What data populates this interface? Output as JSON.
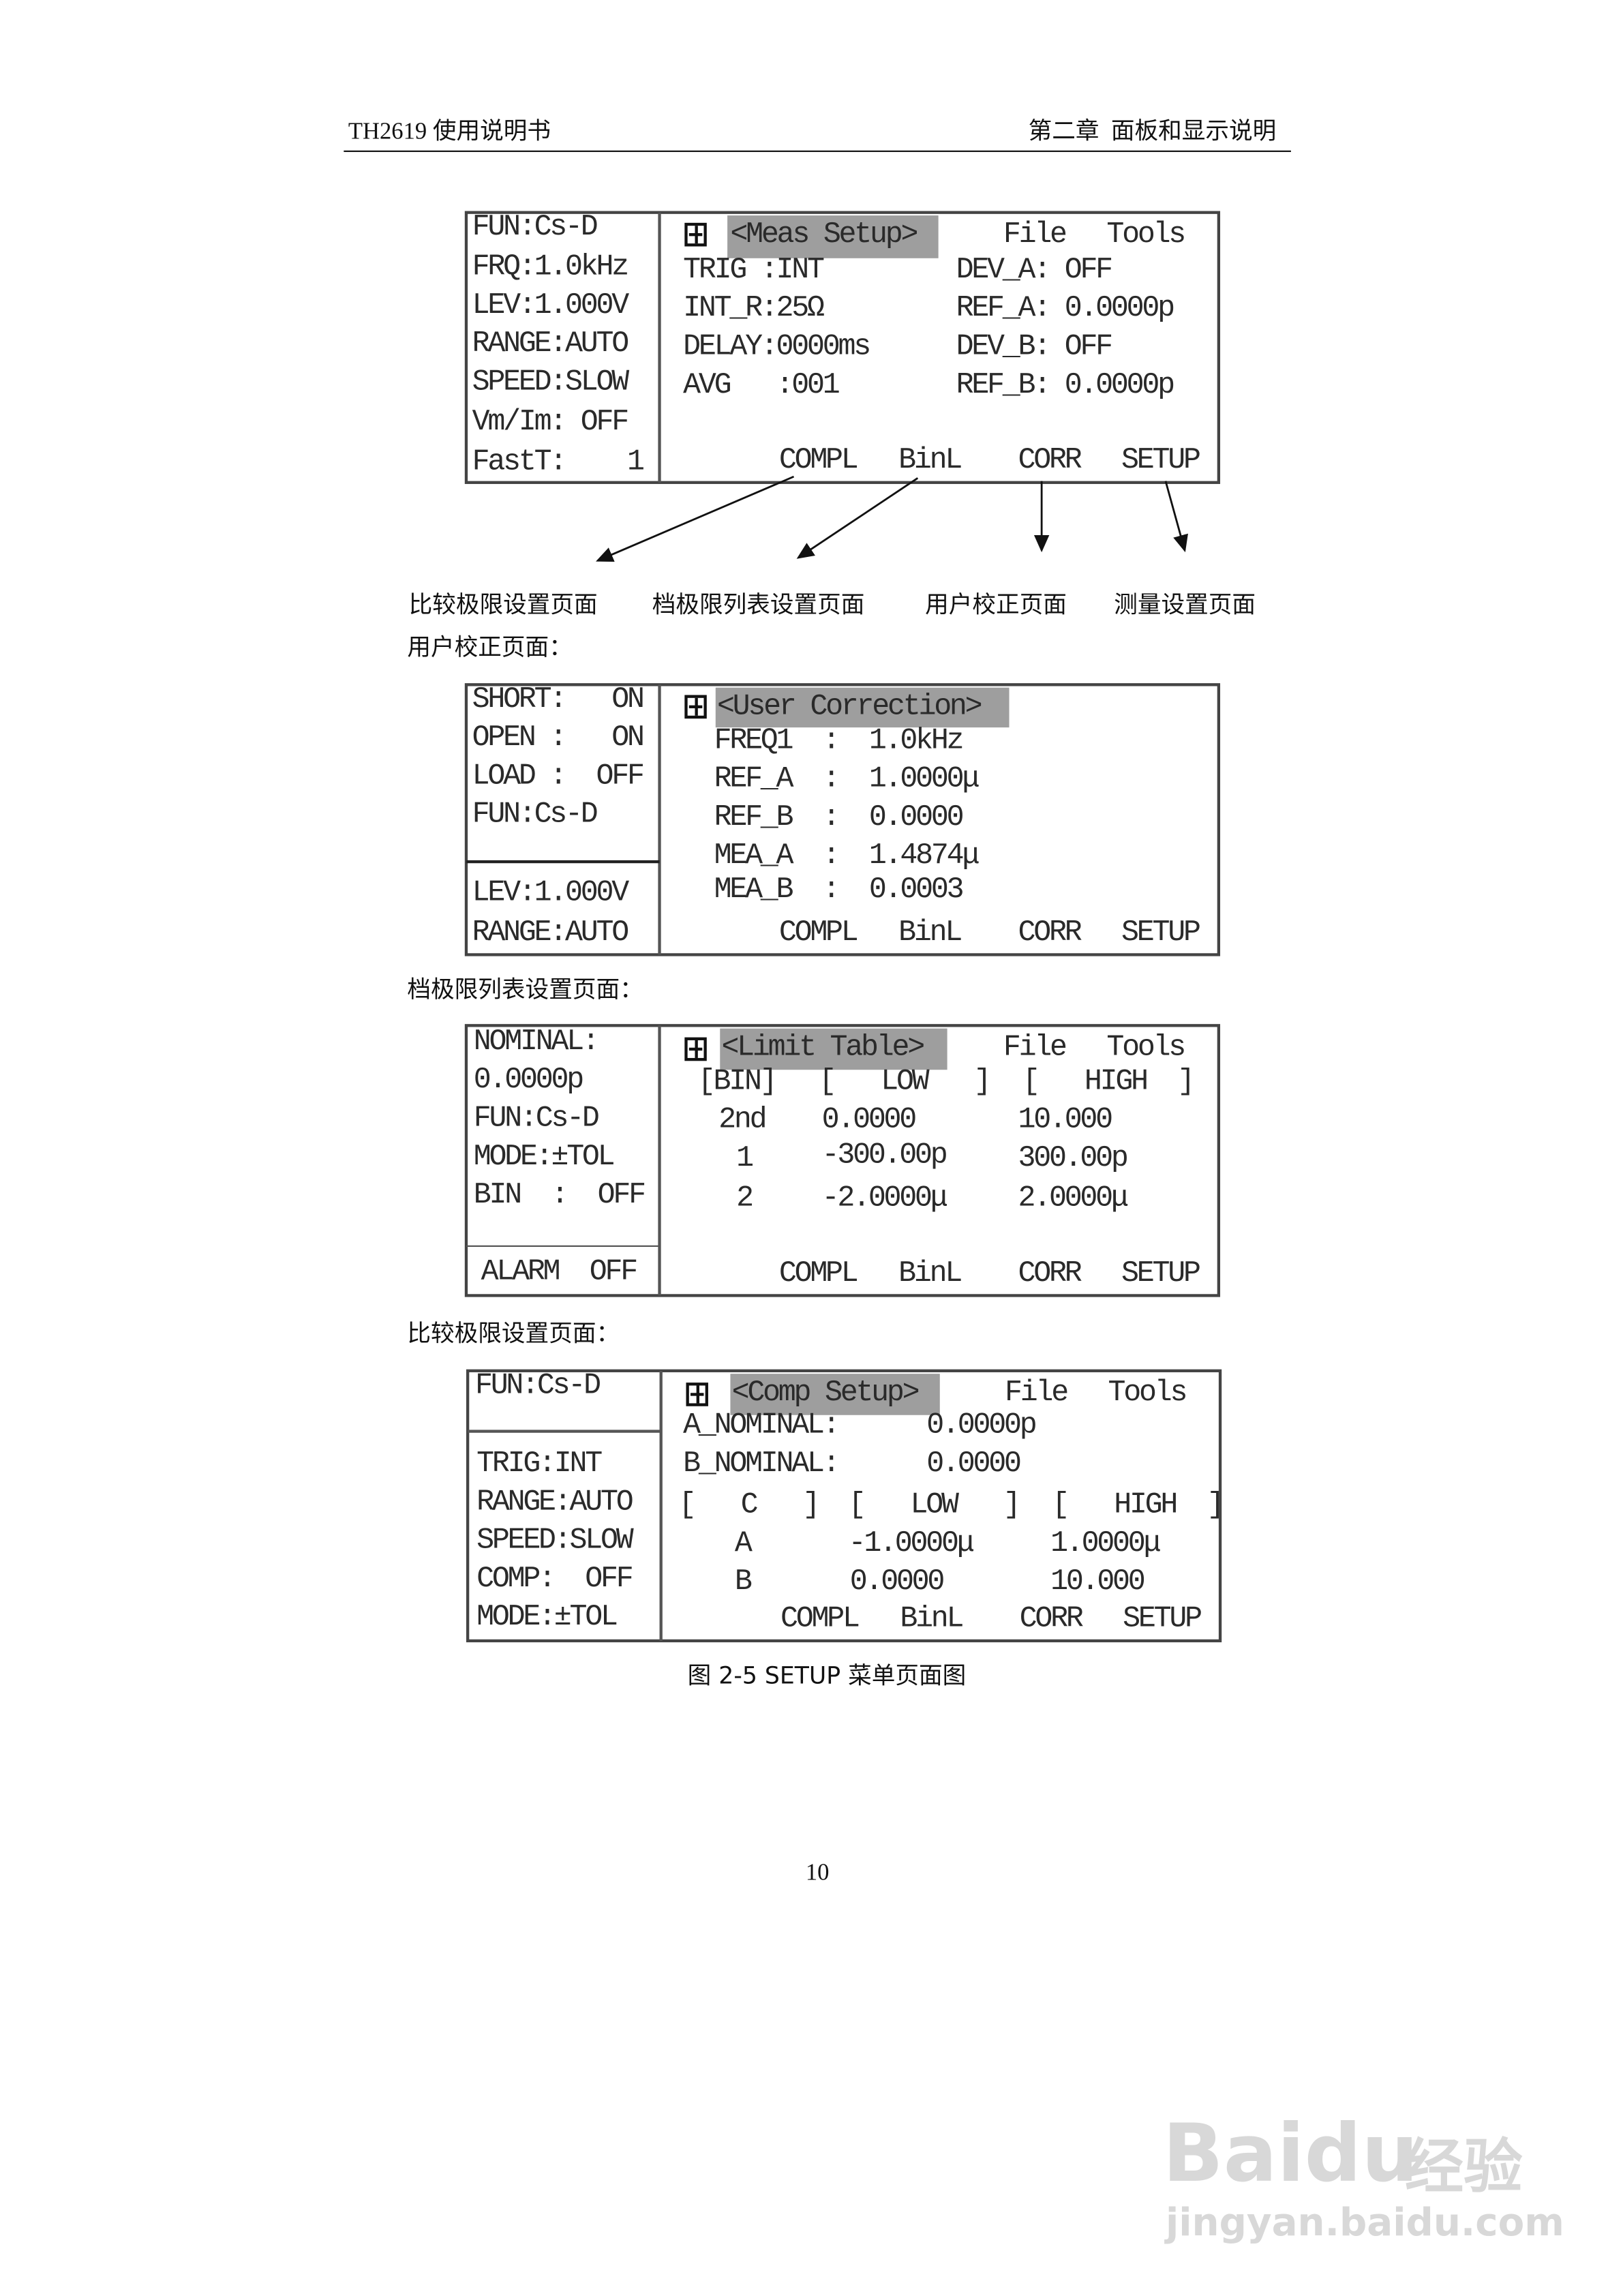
{
  "header": {
    "left": "TH2619 使用说明书",
    "right": "第二章  面板和显示说明"
  },
  "meas_setup": {
    "left": [
      "FUN:Cs-D",
      "FRQ:1.0kHz",
      "LEV:1.000V",
      "RANGE:AUTO",
      "SPEED:SLOW",
      "Vm/Im: OFF",
      "FastT:    1"
    ],
    "title": "<Meas Setup>",
    "file": "File",
    "tools": "Tools",
    "fields": [
      "TRIG :INT",
      "INT_R:25Ω",
      "DELAY:0000ms",
      "AVG   :001",
      "DEV_A: OFF",
      "REF_A: 0.0000p",
      "DEV_B: OFF",
      "REF_B: 0.0000p"
    ],
    "softkeys": [
      "COMPL",
      "BinL",
      "CORR",
      "SETUP"
    ]
  },
  "arrow_labels": [
    "比较极限设置页面",
    "档极限列表设置页面",
    "用户校正页面",
    "测量设置页面"
  ],
  "section_user_correction": "用户校正页面：",
  "user_correction": {
    "left_top": [
      "SHORT:   ON",
      "OPEN :   ON",
      "LOAD :  OFF",
      "FUN:Cs-D"
    ],
    "left_bottom": [
      "LEV:1.000V",
      "RANGE:AUTO"
    ],
    "title": "<User Correction>",
    "fields": [
      "FREQ1  :  1.0kHz",
      "REF_A  :  1.0000μ",
      "REF_B  :  0.0000",
      "MEA_A  :  1.4874μ",
      "MEA_B  :  0.0003"
    ],
    "softkeys": [
      "COMPL",
      "BinL",
      "CORR",
      "SETUP"
    ]
  },
  "section_limit_table": "档极限列表设置页面：",
  "limit_table": {
    "left_top": [
      "NOMINAL:",
      "0.0000p",
      "FUN:Cs-D",
      "MODE:±TOL",
      "BIN  :  OFF"
    ],
    "left_bottom": "ALARM  OFF",
    "title": "<Limit Table>",
    "file": "File",
    "tools": "Tools",
    "columns": [
      "[BIN]",
      "[   LOW   ]",
      "[   HIGH  ]"
    ],
    "rows": [
      [
        "2nd",
        "0.0000",
        "10.000"
      ],
      [
        "1",
        "-300.00p",
        "300.00p"
      ],
      [
        "2",
        "-2.0000μ",
        "2.0000μ"
      ]
    ],
    "softkeys": [
      "COMPL",
      "BinL",
      "CORR",
      "SETUP"
    ]
  },
  "section_comp_setup": "比较极限设置页面：",
  "comp_setup": {
    "left_top": "FUN:Cs-D",
    "left_bottom": [
      "TRIG:INT",
      "RANGE:AUTO",
      "SPEED:SLOW",
      "COMP:  OFF",
      "MODE:±TOL"
    ],
    "title": "<Comp Setup>",
    "file": "File",
    "tools": "Tools",
    "a_nominal_label": "A_NOMINAL:",
    "a_nominal": "0.0000p",
    "b_nominal_label": "B_NOMINAL:",
    "b_nominal": "0.0000",
    "columns": [
      "[   C   ]",
      "[   LOW   ]",
      "[   HIGH  ]"
    ],
    "rows": [
      [
        "A",
        "-1.0000μ",
        "1.0000μ"
      ],
      [
        "B",
        "0.0000",
        "10.000"
      ]
    ],
    "softkeys": [
      "COMPL",
      "BinL",
      "CORR",
      "SETUP"
    ]
  },
  "caption": "图 2-5 SETUP 菜单页面图",
  "page_number": "10",
  "watermark": {
    "brand": "Baidu",
    "product": "经验",
    "url": "jingyan.baidu.com"
  },
  "colors": {
    "highlight": "#9e9e9e",
    "border": "#444444"
  }
}
